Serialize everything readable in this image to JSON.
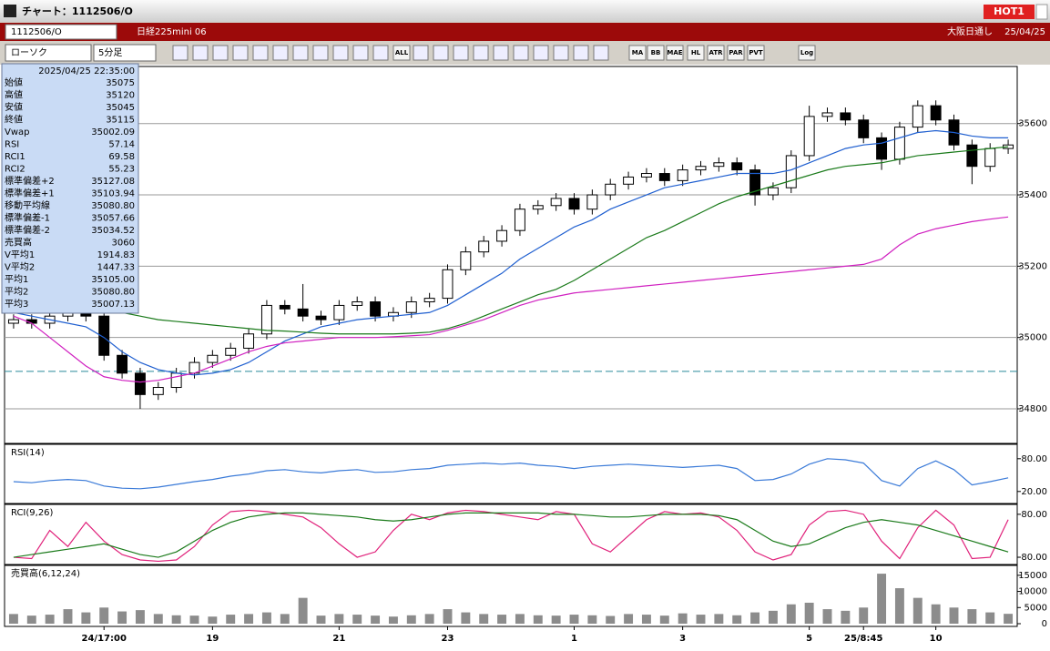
{
  "window": {
    "title": "チャート：1112506/O",
    "hot_button": "HOT1"
  },
  "symbol_bar": {
    "code": "1112506/O",
    "name": "日経225mini 06",
    "session": "大阪日通し",
    "date": "25/04/25"
  },
  "toolbar": {
    "chart_style": "ローソク",
    "interval": "5分足",
    "buttons": [
      "ALL",
      "MA",
      "BB",
      "MAE",
      "HL",
      "ATR",
      "PAR",
      "PVT",
      "Log"
    ]
  },
  "info_panel": {
    "datetime": "2025/04/25  22:35:00",
    "rows": [
      {
        "label": "始値",
        "value": "35075",
        "color": "#000000"
      },
      {
        "label": "高値",
        "value": "35120",
        "color": "#000000"
      },
      {
        "label": "安値",
        "value": "35045",
        "color": "#000000"
      },
      {
        "label": "終値",
        "value": "35115",
        "color": "#000000"
      },
      {
        "label": "Vwap",
        "value": "35002.09",
        "color": "#d020c0"
      },
      {
        "label": "RSI",
        "value": "57.14",
        "color": "#3a7ad8"
      },
      {
        "label": "RCI1",
        "value": "69.58",
        "color": "#d0206a"
      },
      {
        "label": "RCI2",
        "value": "55.23",
        "color": "#1a7a1a"
      },
      {
        "label": "標準偏差+2",
        "value": "35127.08",
        "color": "#909090"
      },
      {
        "label": "標準偏差+1",
        "value": "35103.94",
        "color": "#909090"
      },
      {
        "label": "移動平均線",
        "value": "35080.80",
        "color": "#1030a0"
      },
      {
        "label": "標準偏差-1",
        "value": "35057.66",
        "color": "#909090"
      },
      {
        "label": "標準偏差-2",
        "value": "35034.52",
        "color": "#909090"
      },
      {
        "label": "売買高",
        "value": "3060",
        "color": "#000000"
      },
      {
        "label": "V平均1",
        "value": "1914.83",
        "color": "#d020c0"
      },
      {
        "label": "V平均2",
        "value": "1447.33",
        "color": "#1f5fd0"
      },
      {
        "label": "平均1",
        "value": "35105.00",
        "color": "#e01010"
      },
      {
        "label": "平均2",
        "value": "35080.80",
        "color": "#1f5fd0"
      },
      {
        "label": "平均3",
        "value": "35007.13",
        "color": "#1a7a1a"
      }
    ]
  },
  "chart_data": [
    {
      "type": "candlestick",
      "categories": [
        null,
        null,
        null,
        null,
        null,
        "24/17:00",
        null,
        null,
        null,
        null,
        null,
        "19",
        null,
        null,
        null,
        null,
        null,
        null,
        "21",
        null,
        null,
        null,
        null,
        null,
        "23",
        null,
        null,
        null,
        null,
        null,
        null,
        "1",
        null,
        null,
        null,
        null,
        null,
        "3",
        null,
        null,
        null,
        null,
        null,
        null,
        "5",
        null,
        null,
        "25/8:45",
        null,
        null,
        null,
        "10",
        null,
        null,
        null,
        null
      ],
      "open": [
        35040,
        35050,
        35040,
        35060,
        35070,
        35060,
        34950,
        34900,
        34840,
        34860,
        34900,
        34930,
        34950,
        34970,
        35010,
        35090,
        35080,
        35060,
        35050,
        35090,
        35100,
        35060,
        35070,
        35100,
        35110,
        35190,
        35240,
        35270,
        35300,
        35360,
        35370,
        35390,
        35360,
        35400,
        35430,
        35450,
        35460,
        35440,
        35470,
        35480,
        35490,
        35470,
        35400,
        35420,
        35510,
        35620,
        35630,
        35610,
        35560,
        35500,
        35590,
        35650,
        35610,
        35540,
        35480,
        35530
      ],
      "high": [
        35065,
        35065,
        35075,
        35085,
        35085,
        35075,
        34965,
        34915,
        34875,
        34915,
        34945,
        34965,
        34985,
        35025,
        35105,
        35105,
        35150,
        35075,
        35105,
        35115,
        35115,
        35085,
        35115,
        35125,
        35205,
        35255,
        35285,
        35315,
        35375,
        35385,
        35405,
        35405,
        35415,
        35445,
        35465,
        35475,
        35475,
        35485,
        35495,
        35505,
        35505,
        35485,
        35435,
        35525,
        35650,
        35645,
        35645,
        35625,
        35575,
        35605,
        35665,
        35665,
        35625,
        35555,
        35545,
        35555
      ],
      "low": [
        35025,
        35025,
        35025,
        35045,
        35045,
        34935,
        34885,
        34800,
        34825,
        34845,
        34885,
        34915,
        34935,
        34955,
        34995,
        35065,
        35045,
        35035,
        35035,
        35075,
        35045,
        35045,
        35055,
        35085,
        35095,
        35175,
        35225,
        35255,
        35285,
        35345,
        35355,
        35345,
        35345,
        35385,
        35415,
        35435,
        35425,
        35425,
        35455,
        35465,
        35455,
        35370,
        35385,
        35405,
        35495,
        35605,
        35595,
        35545,
        35470,
        35485,
        35575,
        35595,
        35525,
        35430,
        35465,
        35515
      ],
      "close": [
        35050,
        35040,
        35060,
        35070,
        35060,
        34950,
        34900,
        34840,
        34860,
        34900,
        34930,
        34950,
        34970,
        35010,
        35090,
        35080,
        35060,
        35050,
        35090,
        35100,
        35060,
        35070,
        35100,
        35110,
        35190,
        35240,
        35270,
        35300,
        35360,
        35370,
        35390,
        35360,
        35400,
        35430,
        35450,
        35460,
        35440,
        35470,
        35480,
        35490,
        35470,
        35400,
        35420,
        35510,
        35620,
        35630,
        35610,
        35560,
        35500,
        35590,
        35650,
        35610,
        35540,
        35480,
        35530,
        35540
      ],
      "up_color": "#ffffff",
      "down_color": "#000000",
      "series": [
        {
          "color": "#1f5fd0",
          "values": [
            35070,
            35060,
            35050,
            35040,
            35030,
            35000,
            34960,
            34930,
            34910,
            34900,
            34895,
            34900,
            34910,
            34930,
            34960,
            34990,
            35010,
            35030,
            35040,
            35050,
            35055,
            35060,
            35065,
            35070,
            35090,
            35120,
            35150,
            35180,
            35220,
            35250,
            35280,
            35310,
            35330,
            35360,
            35380,
            35400,
            35420,
            35430,
            35440,
            35450,
            35460,
            35460,
            35460,
            35470,
            35490,
            35510,
            35530,
            35540,
            35545,
            35560,
            35575,
            35580,
            35575,
            35565,
            35560,
            35560
          ]
        },
        {
          "color": "#1a7a1a",
          "values": [
            35115,
            35110,
            35100,
            35095,
            35090,
            35080,
            35070,
            35060,
            35050,
            35045,
            35040,
            35035,
            35030,
            35025,
            35020,
            35018,
            35015,
            35012,
            35010,
            35010,
            35010,
            35010,
            35012,
            35015,
            35025,
            35040,
            35060,
            35080,
            35100,
            35120,
            35135,
            35160,
            35190,
            35220,
            35250,
            35280,
            35300,
            35325,
            35350,
            35375,
            35395,
            35410,
            35425,
            35440,
            35455,
            35470,
            35480,
            35485,
            35490,
            35500,
            35510,
            35515,
            35520,
            35525,
            35530,
            35535
          ]
        },
        {
          "color": "#d020c0",
          "values": [
            35060,
            35040,
            35000,
            34960,
            34920,
            34890,
            34880,
            34875,
            34880,
            34890,
            34900,
            34920,
            34940,
            34960,
            34975,
            34985,
            34990,
            34995,
            35000,
            35000,
            35000,
            35002,
            35005,
            35008,
            35020,
            35035,
            35050,
            35070,
            35090,
            35105,
            35115,
            35125,
            35130,
            35135,
            35140,
            35145,
            35150,
            35155,
            35160,
            35165,
            35170,
            35175,
            35180,
            35185,
            35190,
            35195,
            35200,
            35205,
            35220,
            35260,
            35290,
            35305,
            35315,
            35325,
            35332,
            35338
          ]
        }
      ],
      "reference_line": 34905,
      "reference_color": "#2a8a9a",
      "ylim": [
        34703,
        35755
      ],
      "yticks": [
        34800,
        35000,
        35200,
        35400,
        35600
      ],
      "grid": true
    },
    {
      "type": "line",
      "title": "RSI(14)",
      "series": [
        {
          "color": "#3a7ad8",
          "values": [
            38,
            36,
            40,
            42,
            40,
            30,
            26,
            25,
            28,
            33,
            38,
            42,
            48,
            52,
            58,
            60,
            56,
            54,
            58,
            60,
            55,
            56,
            60,
            62,
            68,
            70,
            72,
            70,
            72,
            68,
            66,
            62,
            66,
            68,
            70,
            68,
            66,
            64,
            66,
            68,
            62,
            40,
            42,
            52,
            70,
            80,
            78,
            72,
            40,
            30,
            62,
            76,
            60,
            32,
            38,
            45
          ]
        }
      ],
      "ylim": [
        -2,
        103
      ],
      "yticks": [
        {
          "value": 80,
          "label": "80.00"
        },
        {
          "value": 20,
          "label": "20.00"
        }
      ],
      "grid": false
    },
    {
      "type": "line",
      "title": "RCI(9,26)",
      "series": [
        {
          "color": "#e0207a",
          "values": [
            -80,
            -85,
            20,
            -40,
            50,
            -20,
            -70,
            -90,
            -95,
            -90,
            -40,
            40,
            90,
            95,
            90,
            80,
            70,
            30,
            -30,
            -80,
            -60,
            20,
            80,
            60,
            85,
            95,
            90,
            80,
            70,
            60,
            90,
            80,
            -30,
            -60,
            0,
            60,
            90,
            80,
            85,
            70,
            20,
            -60,
            -90,
            -70,
            40,
            90,
            95,
            80,
            -20,
            -85,
            30,
            95,
            40,
            -85,
            -80,
            60
          ]
        },
        {
          "color": "#1a7a1a",
          "values": [
            -80,
            -70,
            -60,
            -50,
            -40,
            -30,
            -50,
            -70,
            -80,
            -60,
            -20,
            20,
            50,
            70,
            80,
            85,
            85,
            80,
            75,
            70,
            60,
            55,
            60,
            70,
            80,
            85,
            85,
            85,
            85,
            85,
            80,
            80,
            75,
            70,
            70,
            75,
            80,
            80,
            80,
            75,
            60,
            20,
            -20,
            -40,
            -30,
            0,
            30,
            50,
            60,
            50,
            40,
            20,
            0,
            -20,
            -40,
            -60
          ]
        }
      ],
      "ylim": [
        -107,
        110
      ],
      "yticks": [
        {
          "value": 80,
          "label": "80.00"
        },
        {
          "value": -80,
          "label": "-80.00"
        }
      ],
      "grid": false
    },
    {
      "type": "bar",
      "title": "売買高(6,12,24)",
      "color": "#8c8c8c",
      "values": [
        3000,
        2500,
        2800,
        4500,
        3500,
        5000,
        3800,
        4200,
        3000,
        2600,
        2500,
        2200,
        2800,
        3000,
        3500,
        3000,
        8000,
        2500,
        3000,
        2800,
        2500,
        2200,
        2600,
        3000,
        4500,
        3500,
        3000,
        2800,
        3000,
        2600,
        2500,
        2800,
        2600,
        2400,
        3000,
        2800,
        2500,
        3200,
        2800,
        3000,
        2600,
        3500,
        4000,
        6000,
        6500,
        4500,
        4000,
        5000,
        15500,
        11000,
        8000,
        6000,
        5000,
        4500,
        3500,
        3060
      ],
      "ylim": [
        0,
        17500
      ],
      "yticks": [
        15000,
        10000,
        5000,
        0
      ],
      "grid": false
    }
  ]
}
